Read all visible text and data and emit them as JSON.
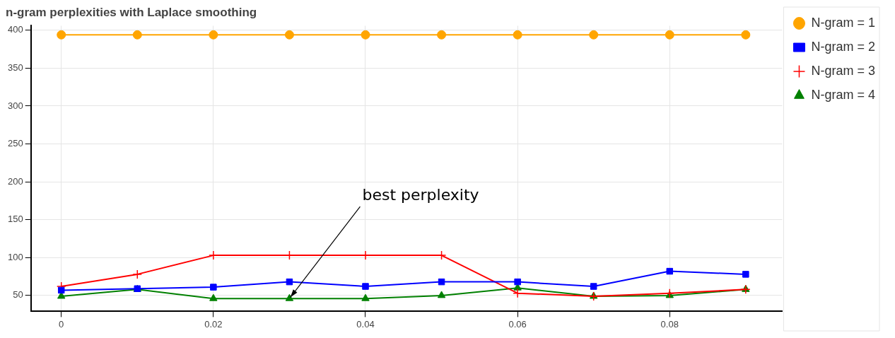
{
  "chart_data": {
    "type": "line",
    "title": "n-gram perplexities with Laplace smoothing",
    "x": [
      0,
      0.01,
      0.02,
      0.03,
      0.04,
      0.05,
      0.06,
      0.07,
      0.08,
      0.09
    ],
    "series": [
      {
        "name": "N-gram = 1",
        "color": "#ffa500",
        "marker": "circle",
        "values": [
          394,
          394,
          394,
          394,
          394,
          394,
          394,
          394,
          394,
          394
        ]
      },
      {
        "name": "N-gram = 2",
        "color": "#0000ff",
        "marker": "square",
        "values": [
          57,
          59,
          61,
          68,
          62,
          68,
          68,
          62,
          82,
          78
        ]
      },
      {
        "name": "N-gram = 3",
        "color": "#ff0000",
        "marker": "cross",
        "values": [
          62,
          78,
          103,
          103,
          103,
          103,
          53,
          49,
          53,
          58
        ]
      },
      {
        "name": "N-gram = 4",
        "color": "#008000",
        "marker": "triangle",
        "values": [
          49,
          58,
          46,
          46,
          46,
          50,
          60,
          49,
          50,
          58
        ]
      }
    ],
    "xlim": [
      -0.004,
      0.0948
    ],
    "xticks": [
      0,
      0.02,
      0.04,
      0.06,
      0.08
    ],
    "ylim": [
      29,
      406
    ],
    "yticks": [
      50,
      100,
      150,
      200,
      250,
      300,
      350,
      400
    ],
    "annotations": [
      {
        "text": "best perplexity",
        "x": 0.03,
        "y": 46
      }
    ],
    "grid": true,
    "legend": "top right",
    "line_style": "solid"
  }
}
